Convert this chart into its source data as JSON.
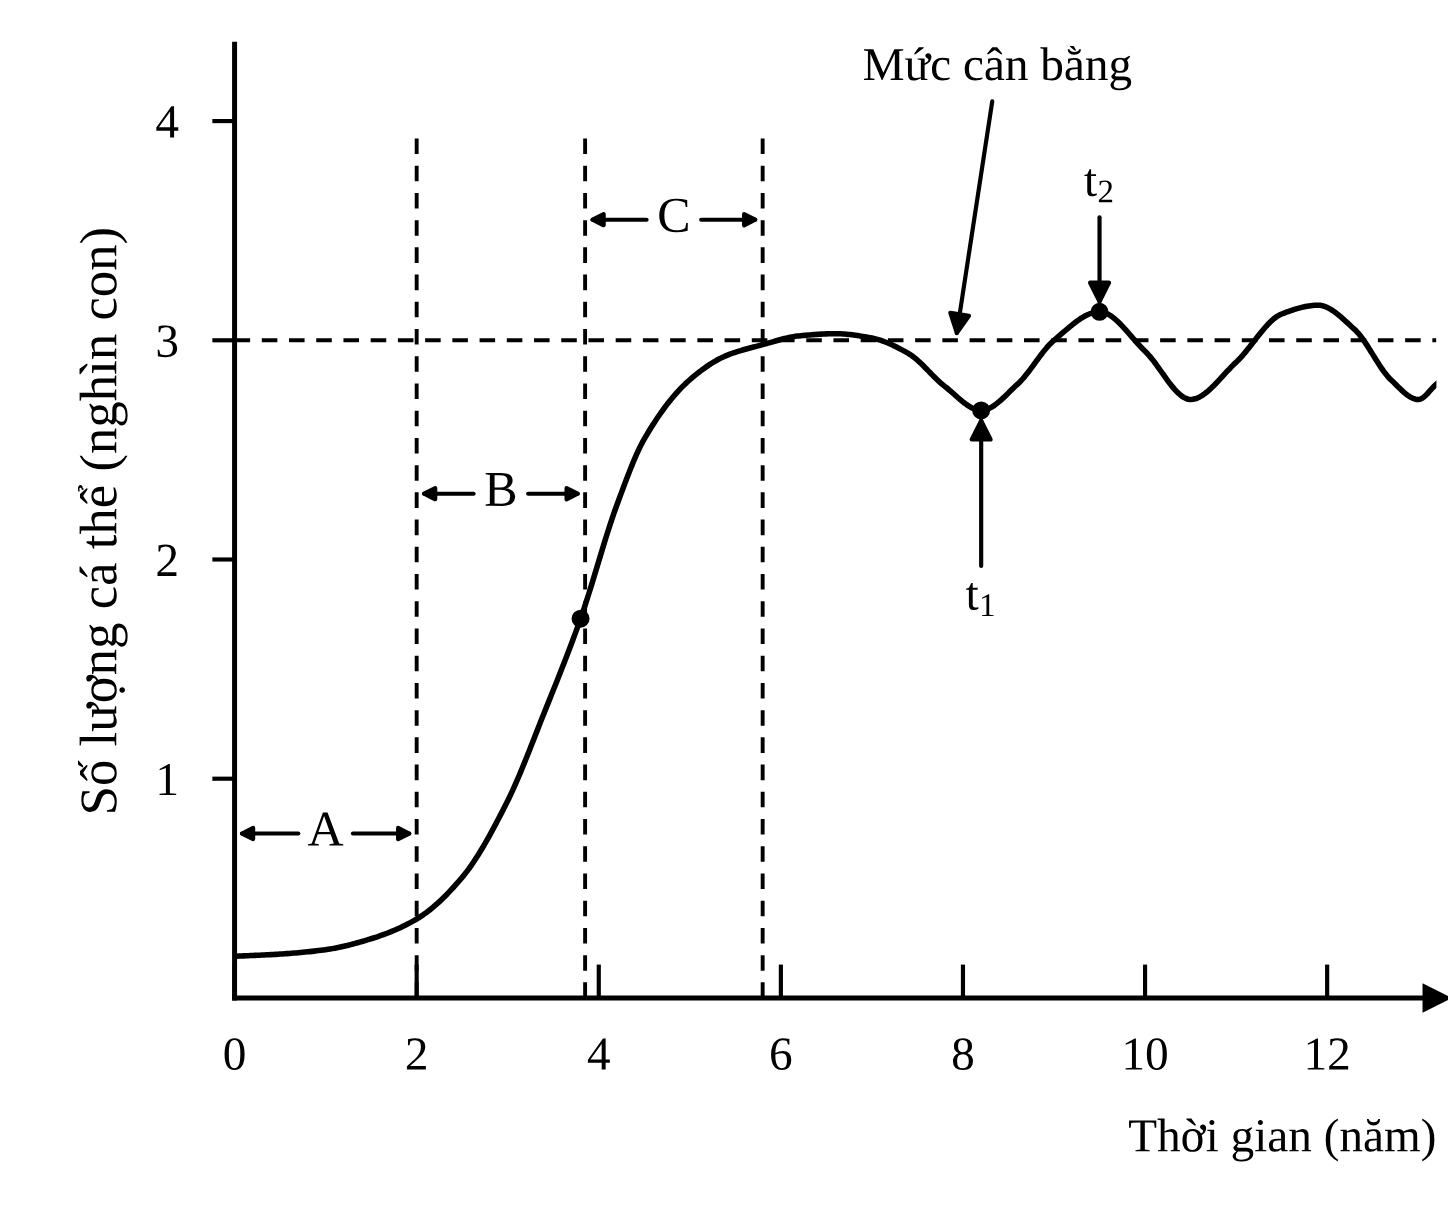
{
  "chart_data": {
    "type": "line",
    "xlabel": "Thời gian (năm)",
    "ylabel": "Số lượng cá thể (nghìn con)",
    "xlim": [
      0,
      13.2
    ],
    "ylim": [
      0,
      4.35
    ],
    "xticks": [
      0,
      2,
      4,
      6,
      8,
      10,
      12
    ],
    "yticks": [
      1,
      2,
      3,
      4
    ],
    "grid": false,
    "legend": false,
    "series": [
      {
        "color": "#000000",
        "x": [
          0,
          0.5,
          1,
          1.5,
          2,
          2.5,
          3,
          3.4,
          3.8,
          4.2,
          4.5,
          5,
          5.4,
          5.8,
          6.2,
          6.6,
          7,
          7.4,
          7.8,
          8.2,
          8.6,
          9,
          9.5,
          10,
          10.5,
          11,
          11.5,
          11.9,
          12.3,
          12.7,
          13,
          13.2
        ],
        "values": [
          0.19,
          0.2,
          0.22,
          0.27,
          0.36,
          0.55,
          0.9,
          1.3,
          1.73,
          2.25,
          2.55,
          2.82,
          2.93,
          2.98,
          3.02,
          3.03,
          3.01,
          2.94,
          2.79,
          2.68,
          2.8,
          3.0,
          3.13,
          2.95,
          2.73,
          2.9,
          3.12,
          3.16,
          3.05,
          2.82,
          2.73,
          2.8
        ]
      },
      {
        "type": "scatter",
        "color": "#000000",
        "marker": "circle",
        "x": [
          3.8,
          8.2,
          9.5
        ],
        "values": [
          1.73,
          2.68,
          3.13
        ]
      }
    ],
    "ref_lines": [
      {
        "axis": "y",
        "value": 3,
        "line_style": "dashed",
        "color": "#000000",
        "label": "Mức cân bằng"
      },
      {
        "axis": "x",
        "value": 2,
        "line_style": "dashed",
        "color": "#000000"
      },
      {
        "axis": "x",
        "value": 3.85,
        "line_style": "dashed",
        "color": "#000000"
      },
      {
        "axis": "x",
        "value": 5.8,
        "line_style": "dashed",
        "color": "#000000"
      }
    ],
    "annotations": [
      "A",
      "B",
      "C",
      {
        "text": "t$_{1}$",
        "x": 8.2,
        "y": 2.68
      },
      {
        "text": "t$_{2}$",
        "x": 9.5,
        "y": 3.13
      }
    ]
  }
}
